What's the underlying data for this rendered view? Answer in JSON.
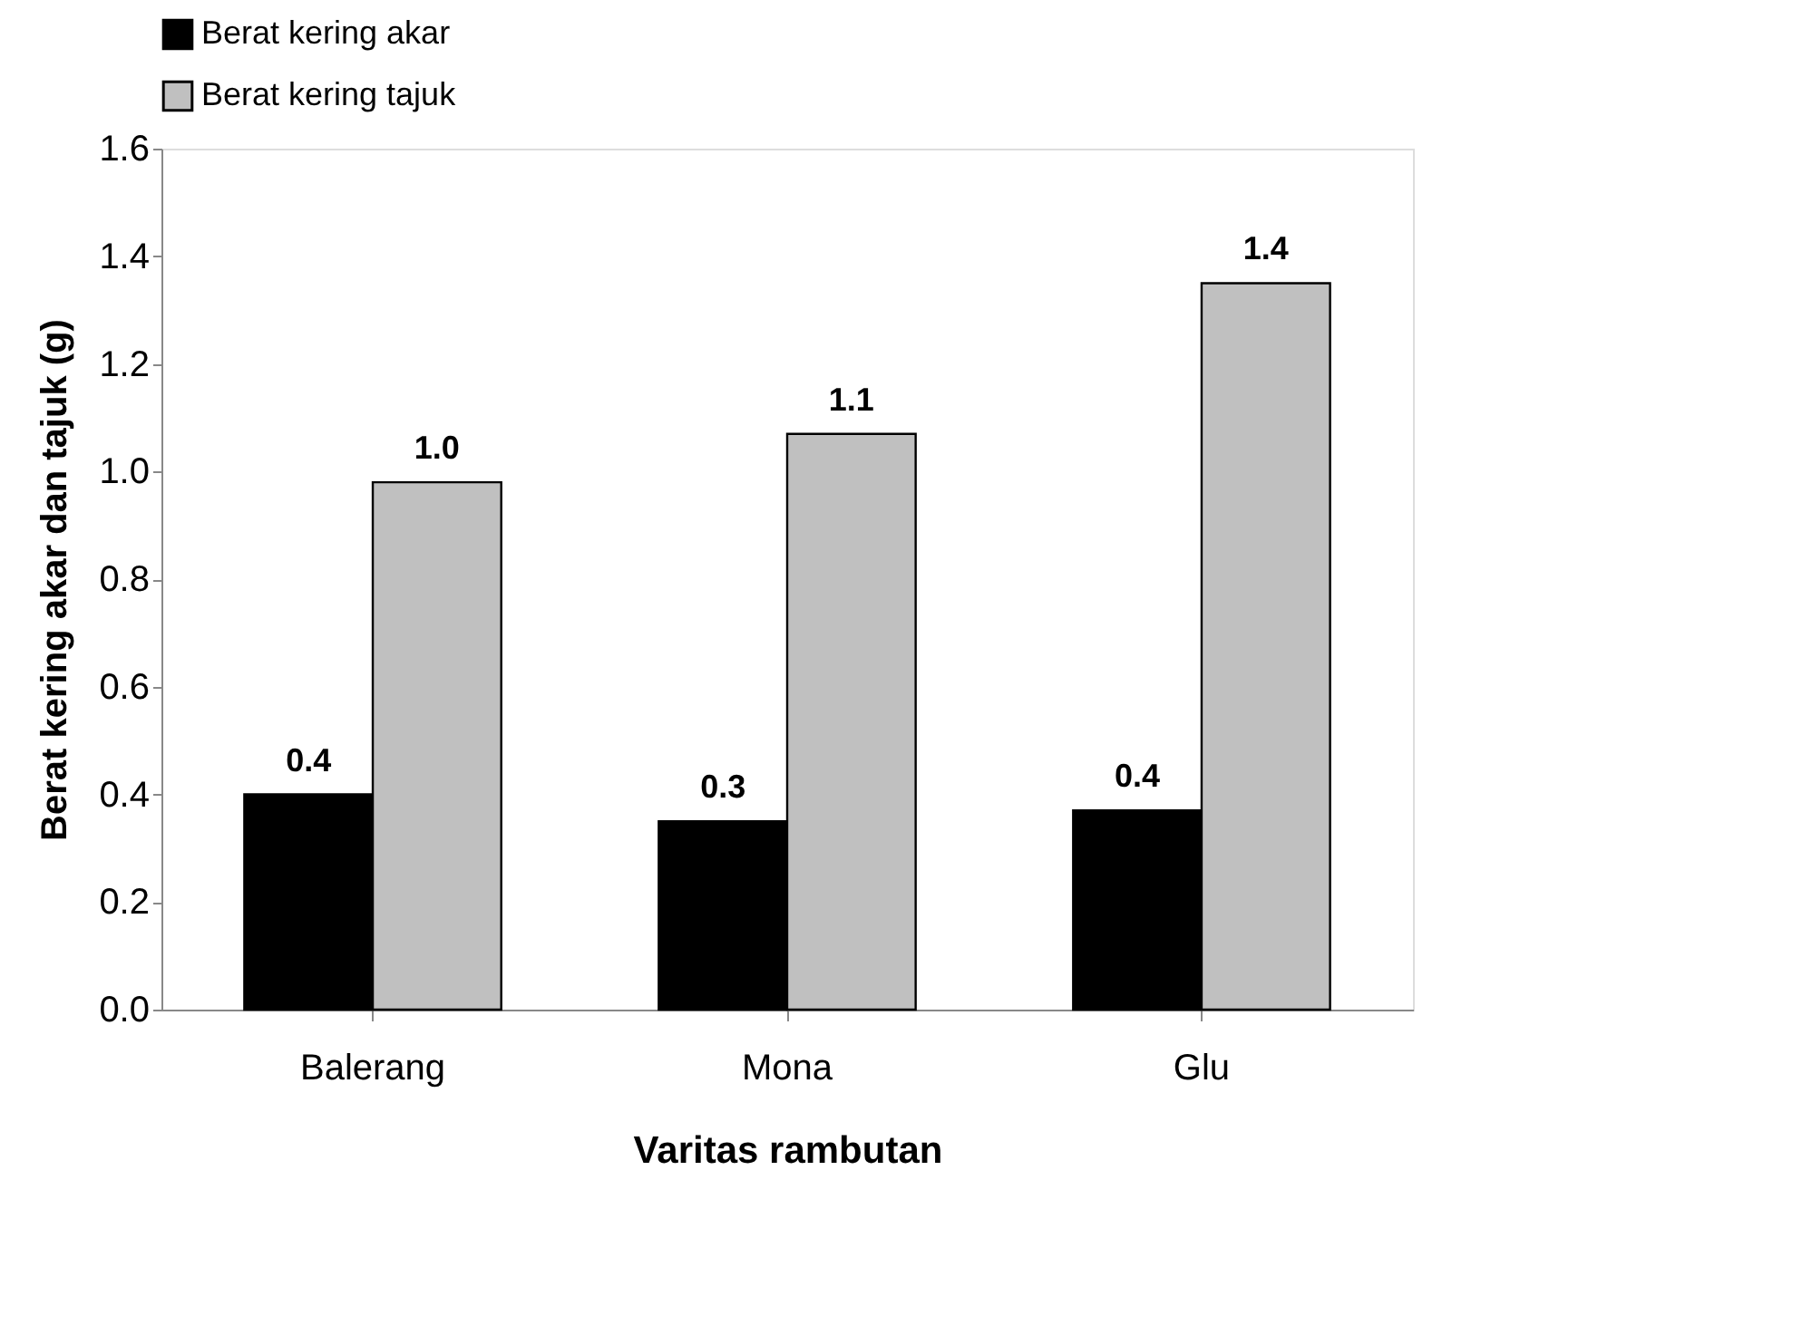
{
  "chart_data": {
    "type": "bar",
    "xlabel": "Varitas rambutan",
    "ylabel": "Berat kering akar dan tajuk (g)",
    "categories": [
      "Balerang",
      "Mona",
      "Glu"
    ],
    "series": [
      {
        "name": "Berat kering akar",
        "color": "#000000",
        "values": [
          0.4,
          0.35,
          0.37
        ],
        "value_labels": [
          "0.4",
          "0.3",
          "0.4"
        ]
      },
      {
        "name": "Berat kering tajuk",
        "color": "#c0c0c0",
        "values": [
          0.98,
          1.07,
          1.35
        ],
        "value_labels": [
          "1.0",
          "1.1",
          "1.4"
        ]
      }
    ],
    "ylim": [
      0,
      1.6
    ],
    "yticks": [
      {
        "value": 0,
        "label": "0.0"
      },
      {
        "value": 0.2,
        "label": "0.2"
      },
      {
        "value": 0.4,
        "label": "0.4"
      },
      {
        "value": 0.6,
        "label": "0.6"
      },
      {
        "value": 0.8,
        "label": "0.8"
      },
      {
        "value": 1.0,
        "label": "1.0"
      },
      {
        "value": 1.2,
        "label": "1.2"
      },
      {
        "value": 1.4,
        "label": "1.4"
      },
      {
        "value": 1.6,
        "label": "1.6"
      }
    ],
    "grid": false,
    "legend": "top"
  }
}
